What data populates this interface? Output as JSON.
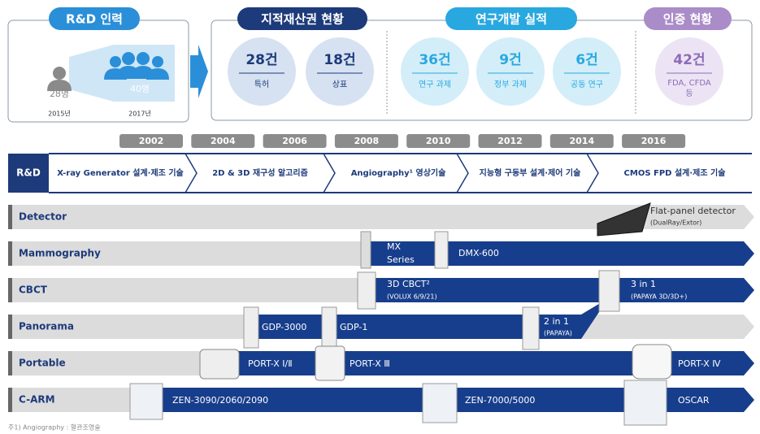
{
  "hr": {
    "title": "R&D 인력",
    "items": [
      {
        "value": "28명",
        "year": "2015년"
      },
      {
        "value": "40명",
        "year": "2017년"
      }
    ]
  },
  "ip": {
    "title": "지적재산권 현황",
    "items": [
      {
        "value": "28건",
        "label": "특허"
      },
      {
        "value": "18건",
        "label": "상표"
      }
    ]
  },
  "rd": {
    "title": "연구개발 실적",
    "items": [
      {
        "value": "36건",
        "label": "연구 과제"
      },
      {
        "value": "9건",
        "label": "정부 과제"
      },
      {
        "value": "6건",
        "label": "공동 연구"
      }
    ]
  },
  "cert": {
    "title": "인증 현황",
    "items": [
      {
        "value": "42건",
        "label": [
          "FDA, CFDA",
          "등"
        ]
      }
    ]
  },
  "years": [
    "2002",
    "2004",
    "2006",
    "2008",
    "2010",
    "2012",
    "2014",
    "2016"
  ],
  "rnd": {
    "label": "R&D",
    "stages": [
      "X-ray Generator 설계·제조 기술",
      "2D & 3D 재구성 알고리즘",
      "Angiography¹ 영상기술",
      "지능형 구동부 설계·제어 기술",
      "CMOS FPD 설계·제조 기술"
    ]
  },
  "rows": [
    {
      "name": "Detector",
      "products": [
        {
          "label": "Flat-panel detector",
          "sub": "(DualRay/Extor)"
        }
      ]
    },
    {
      "name": "Mammography",
      "products": [
        {
          "label": "MX",
          "sub": "Series"
        },
        {
          "label": "DMX-600"
        }
      ]
    },
    {
      "name": "CBCT",
      "products": [
        {
          "label": "3D CBCT²",
          "sub": "(VOLUX 6/9/21)"
        },
        {
          "label": "3 in 1",
          "sub": "(PAPAYA 3D/3D+)"
        }
      ]
    },
    {
      "name": "Panorama",
      "products": [
        {
          "label": "GDP-3000"
        },
        {
          "label": "GDP-1"
        },
        {
          "label": "2 in 1",
          "sub": "(PAPAYA)"
        }
      ]
    },
    {
      "name": "Portable",
      "products": [
        {
          "label": "PORT-X Ⅰ/Ⅱ"
        },
        {
          "label": "PORT-X Ⅲ"
        },
        {
          "label": "PORT-X Ⅳ"
        }
      ]
    },
    {
      "name": "C-ARM",
      "products": [
        {
          "label": "ZEN-3090/2060/2090"
        },
        {
          "label": "ZEN-7000/5000"
        },
        {
          "label": "OSCAR"
        }
      ]
    }
  ],
  "footnote": "주1) Angiography : 혈관조영술"
}
